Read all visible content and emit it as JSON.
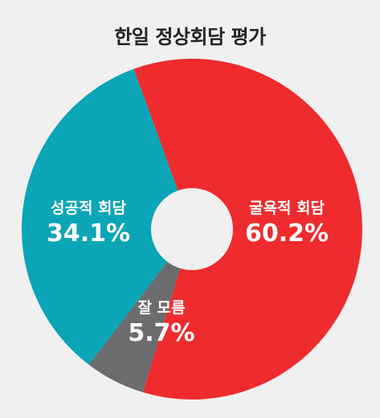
{
  "chart_data": {
    "type": "pie",
    "title": "한일 정상회담 평가",
    "slices": [
      {
        "label": "굴욕적 회담",
        "value": 60.2,
        "value_label": "60.2%",
        "color": "#ef2b2d"
      },
      {
        "label": "잘 모름",
        "value": 5.7,
        "value_label": "5.7%",
        "color": "#6c6c6e"
      },
      {
        "label": "성공적 회담",
        "value": 34.1,
        "value_label": "34.1%",
        "color": "#0aa5b7"
      }
    ],
    "donut": true,
    "legend": "none",
    "background": "#f0f0f0"
  }
}
